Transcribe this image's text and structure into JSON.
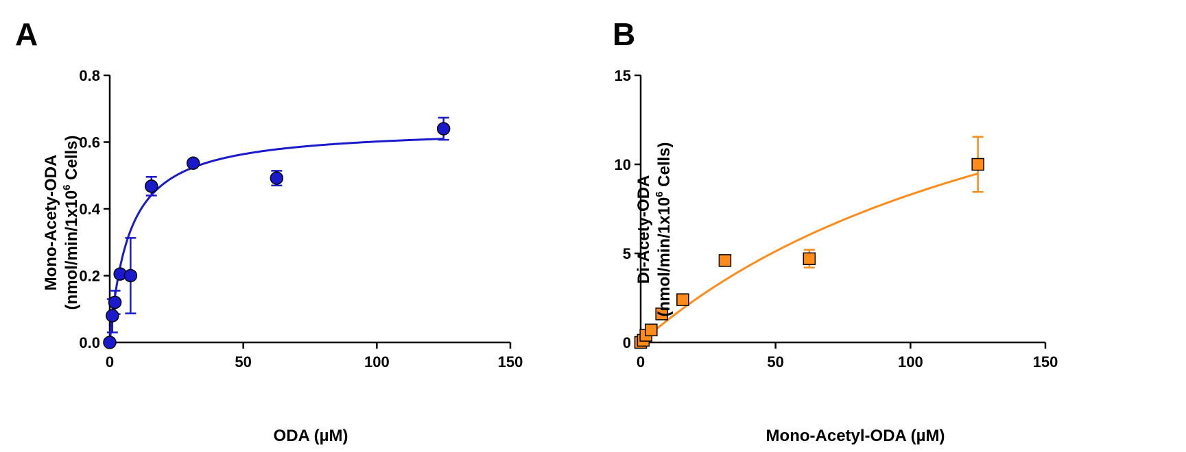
{
  "chart_data": [
    {
      "panel": "A",
      "type": "scatter",
      "xlabel": "ODA (µM)",
      "ylabel_line1": "Mono-Acety-ODA",
      "ylabel_line2_prefix": "(nmol/min/1x10",
      "ylabel_line2_sup": "6",
      "ylabel_line2_suffix": " Cells)",
      "xlim": [
        0,
        150
      ],
      "ylim": [
        0,
        0.8
      ],
      "xticks": [
        "0",
        "50",
        "100",
        "150"
      ],
      "yticks": [
        "0.0",
        "0.2",
        "0.4",
        "0.6",
        "0.8"
      ],
      "xtick_values": [
        0,
        50,
        100,
        150
      ],
      "ytick_values": [
        0,
        0.2,
        0.4,
        0.6,
        0.8
      ],
      "marker": "circle",
      "color": "#1a1acc",
      "points": [
        {
          "x": 0,
          "y": 0.0,
          "err": 0.0
        },
        {
          "x": 0.98,
          "y": 0.08,
          "err": 0.05
        },
        {
          "x": 1.95,
          "y": 0.12,
          "err": 0.035
        },
        {
          "x": 3.9,
          "y": 0.205,
          "err": 0.0
        },
        {
          "x": 7.8,
          "y": 0.2,
          "err": 0.113
        },
        {
          "x": 15.6,
          "y": 0.468,
          "err": 0.028
        },
        {
          "x": 31.25,
          "y": 0.537,
          "err": 0.0
        },
        {
          "x": 62.5,
          "y": 0.492,
          "err": 0.022
        },
        {
          "x": 125,
          "y": 0.64,
          "err": 0.033
        }
      ],
      "fit": {
        "model": "Michaelis-Menten",
        "vmax": 0.645,
        "km": 7.2
      }
    },
    {
      "panel": "B",
      "type": "scatter",
      "xlabel": "Mono-Acetyl-ODA (µM)",
      "ylabel_line1": "Di-Acety-ODA",
      "ylabel_line2_prefix": "(nmol/min/1x10",
      "ylabel_line2_sup": "6",
      "ylabel_line2_suffix": " Cells)",
      "xlim": [
        0,
        150
      ],
      "ylim": [
        0,
        15
      ],
      "xticks": [
        "0",
        "50",
        "100",
        "150"
      ],
      "yticks": [
        "0",
        "5",
        "10",
        "15"
      ],
      "xtick_values": [
        0,
        50,
        100,
        150
      ],
      "ytick_values": [
        0,
        5,
        10,
        15
      ],
      "marker": "square",
      "color": "#ff8c1a",
      "points": [
        {
          "x": 0,
          "y": 0.0,
          "err": 0.0
        },
        {
          "x": 0.98,
          "y": 0.12,
          "err": 0.0
        },
        {
          "x": 1.95,
          "y": 0.4,
          "err": 0.0
        },
        {
          "x": 3.9,
          "y": 0.7,
          "err": 0.0
        },
        {
          "x": 7.8,
          "y": 1.6,
          "err": 0.0
        },
        {
          "x": 15.6,
          "y": 2.4,
          "err": 0.25
        },
        {
          "x": 31.25,
          "y": 4.6,
          "err": 0.0
        },
        {
          "x": 62.5,
          "y": 4.7,
          "err": 0.5
        },
        {
          "x": 125,
          "y": 10.0,
          "err": 1.55
        }
      ],
      "fit": {
        "model": "Michaelis-Menten",
        "vmax": 22.0,
        "km": 165
      }
    }
  ]
}
